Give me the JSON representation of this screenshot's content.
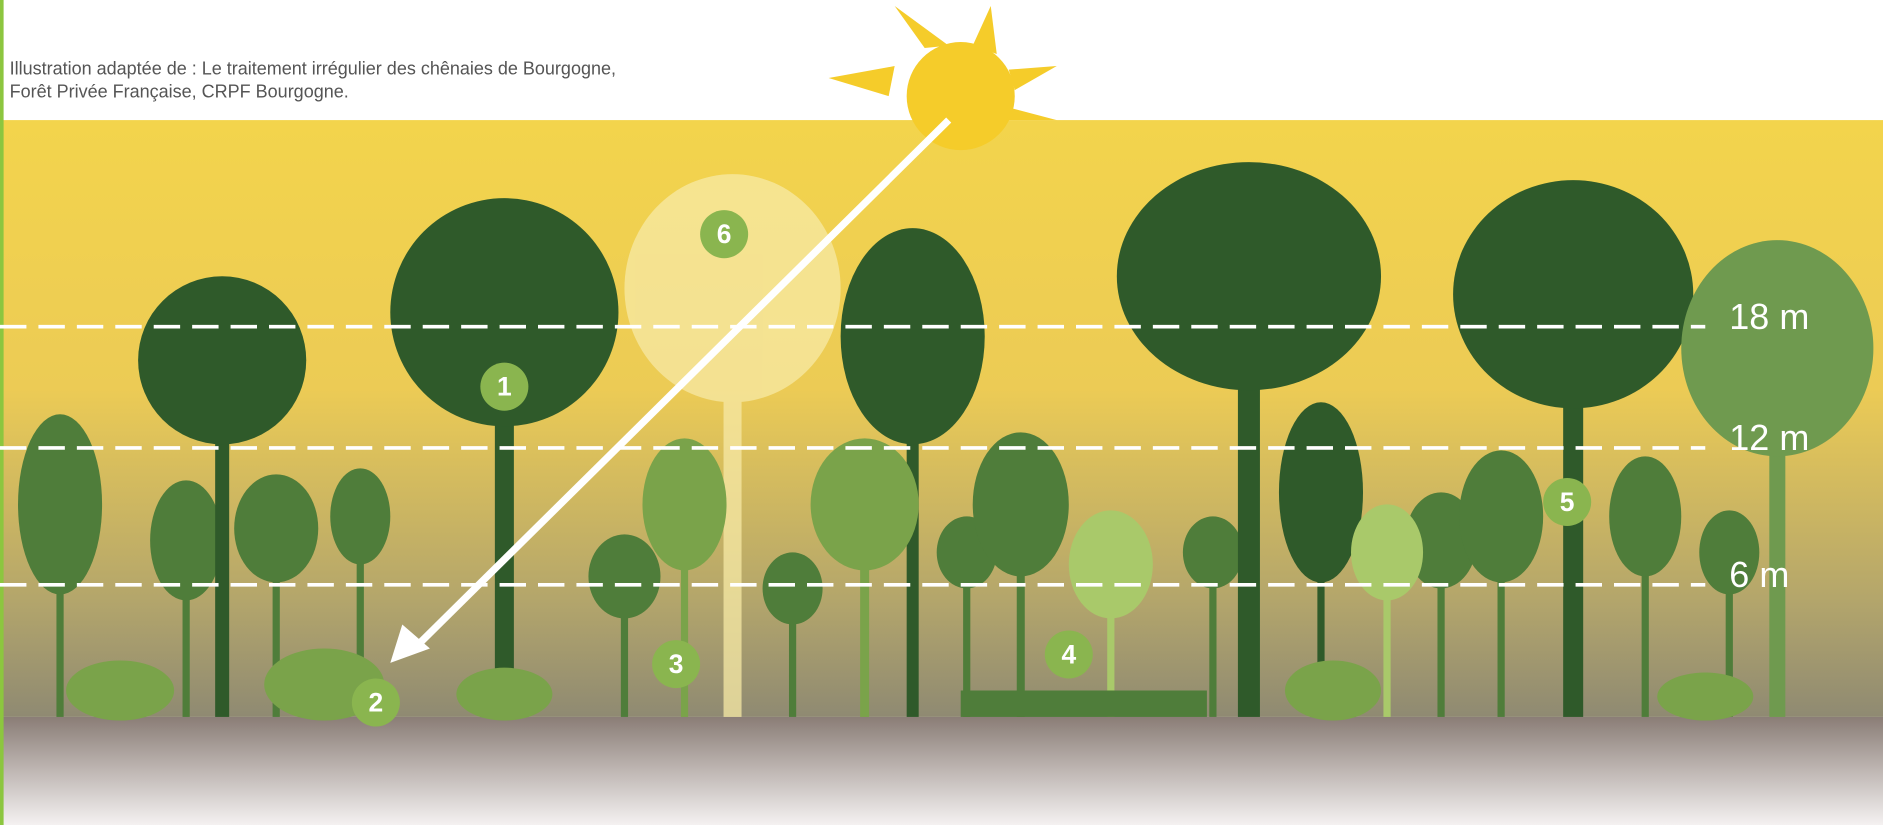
{
  "caption": {
    "lines": [
      "Illustration adaptée de : Le traitement irrégulier des chênaies de Bourgogne,",
      "Forêt Privée Française, CRPF Bourgogne."
    ]
  },
  "height_levels": [
    {
      "label": "18 m"
    },
    {
      "label": "12 m"
    },
    {
      "label": "6 m"
    }
  ],
  "markers": [
    {
      "label": "1"
    },
    {
      "label": "2"
    },
    {
      "label": "3"
    },
    {
      "label": "4"
    },
    {
      "label": "5"
    },
    {
      "label": "6"
    }
  ]
}
